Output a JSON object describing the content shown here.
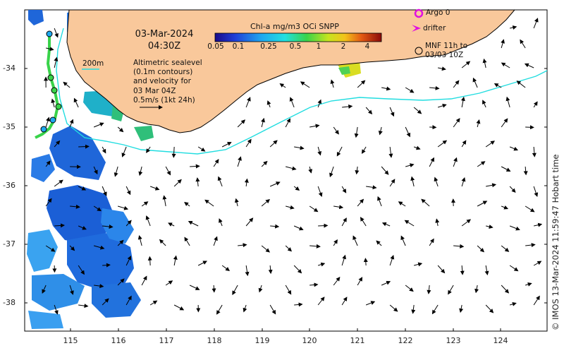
{
  "map": {
    "date": "03-Mar-2024",
    "time": "04:30Z",
    "colorbar": {
      "title": "Chl-a mg/m3 OCi SNPP",
      "ticks": [
        "0.05",
        "0.1",
        "0.25",
        "0.5",
        "1",
        "2",
        "4"
      ],
      "scale": "log"
    },
    "legend": {
      "argo_label": "Argo 0",
      "drifter_label": "drifter",
      "mnf_label_line1": "MNF 11h to",
      "mnf_label_line2": "03/03 10Z"
    },
    "depth_contour_label": "200m",
    "altimetry_note": "Altimetric sealevel\n(0.1m contours)\nand velocity for\n03 Mar 04Z\n0.5m/s (1kt 24h)",
    "x_axis_ticks": [
      "115",
      "116",
      "117",
      "118",
      "119",
      "120",
      "121",
      "122",
      "123",
      "124"
    ],
    "y_axis_ticks": [
      "-34",
      "-35",
      "-36",
      "-37",
      "-38"
    ],
    "credit": "© IMOS 13-Mar-2024 11:59:47 Hobart time",
    "colors": {
      "land": "#f9c89b",
      "coastline": "#000000",
      "contour_200m": "#22dde0",
      "argo": "#e010e0",
      "drifter": "#e010e0",
      "arrow": "#000000"
    }
  }
}
